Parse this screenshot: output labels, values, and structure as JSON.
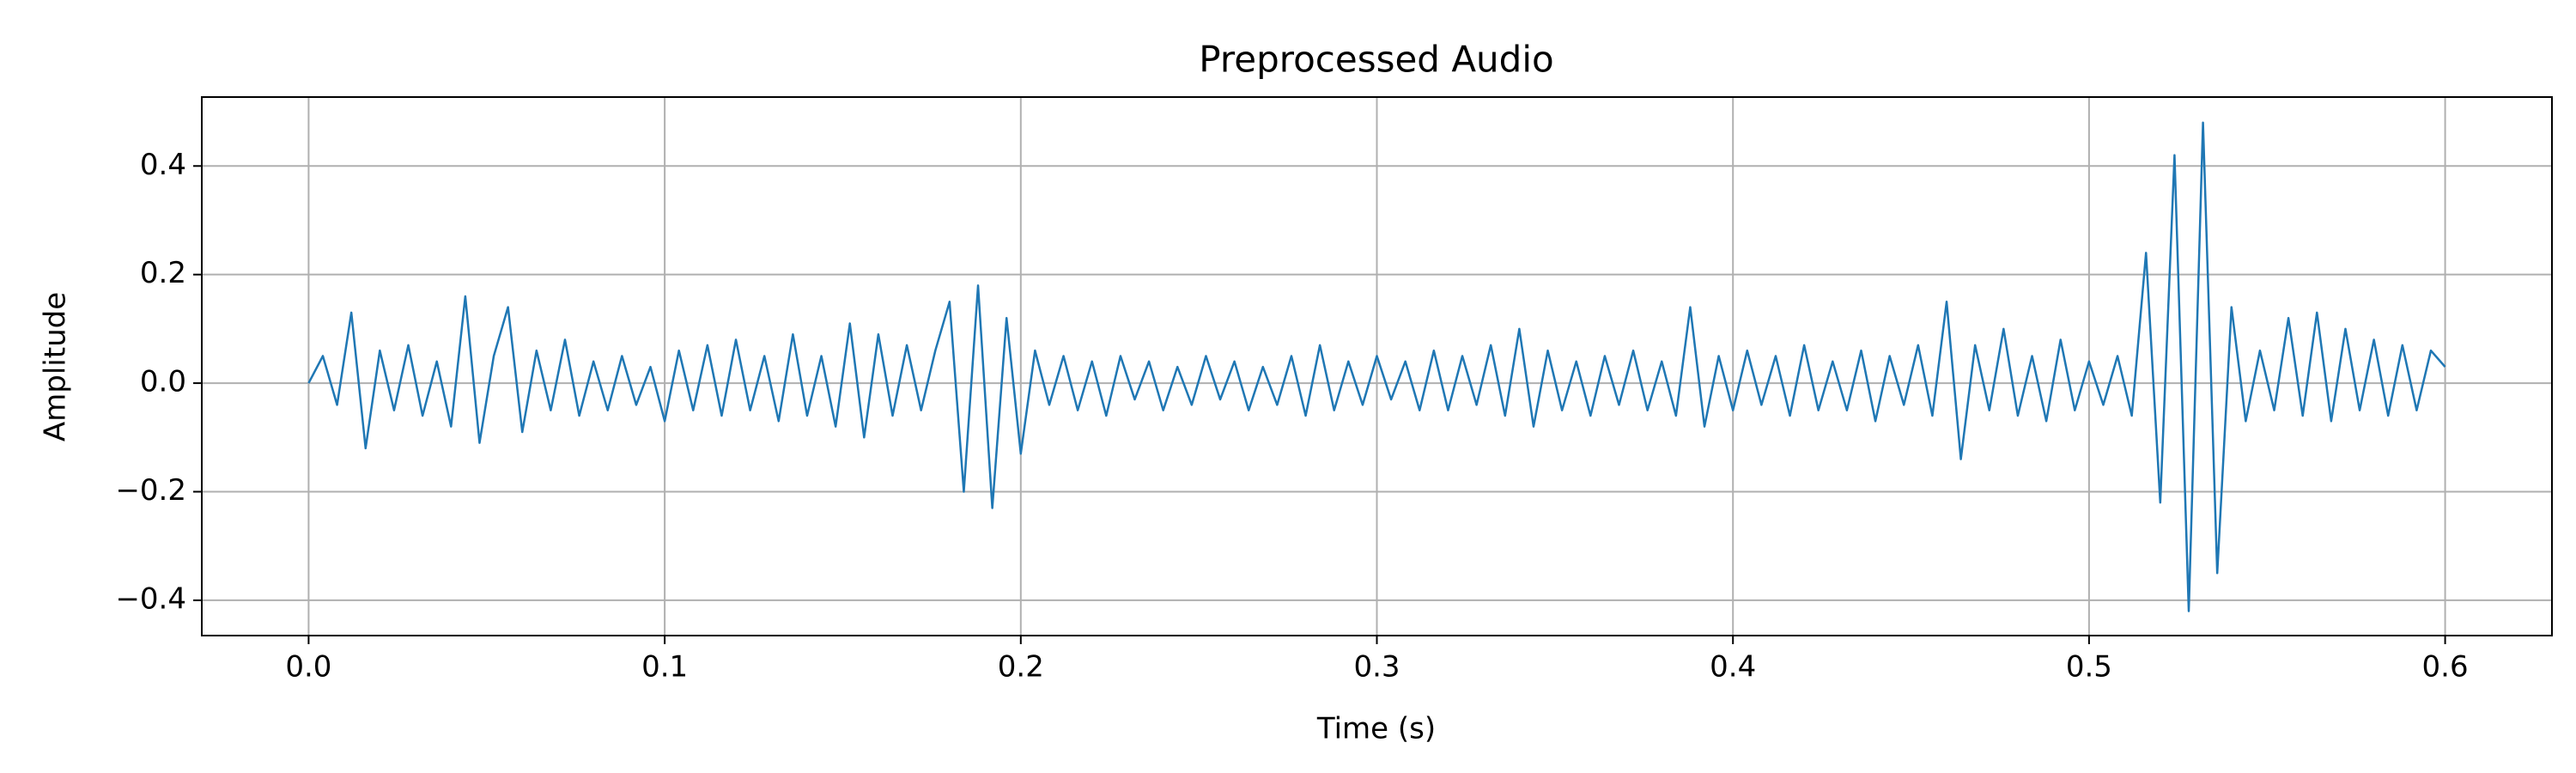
{
  "chart_data": {
    "type": "line",
    "title": "Preprocessed Audio",
    "x_label": "Time (s)",
    "y_label": "Amplitude",
    "color": "#1f77b4",
    "grid": true,
    "xlim": [
      -0.03,
      0.63
    ],
    "ylim": [
      -0.465,
      0.527
    ],
    "xticks": [
      {
        "value": 0,
        "label": "0.0"
      },
      0.1,
      0.2,
      0.3,
      0.4,
      0.5,
      0.6
    ],
    "yticks": [
      {
        "value": -0.4,
        "label": "−0.4"
      },
      {
        "value": -0.2,
        "label": "−0.2"
      },
      {
        "value": 0,
        "label": "0.0"
      },
      0.2,
      0.4
    ],
    "x": [
      0,
      0.004,
      0.008,
      0.012,
      0.016,
      0.02,
      0.024,
      0.028,
      0.032,
      0.036,
      0.04,
      0.044,
      0.048,
      0.052,
      0.056,
      0.06,
      0.064,
      0.068,
      0.072,
      0.076,
      0.08,
      0.084,
      0.088,
      0.092,
      0.096,
      0.1,
      0.104,
      0.108,
      0.112,
      0.116,
      0.12,
      0.124,
      0.128,
      0.132,
      0.136,
      0.14,
      0.144,
      0.148,
      0.152,
      0.156,
      0.16,
      0.164,
      0.168,
      0.172,
      0.176,
      0.18,
      0.184,
      0.188,
      0.192,
      0.196,
      0.2,
      0.204,
      0.208,
      0.212,
      0.216,
      0.22,
      0.224,
      0.228,
      0.232,
      0.236,
      0.24,
      0.244,
      0.248,
      0.252,
      0.256,
      0.26,
      0.264,
      0.268,
      0.272,
      0.276,
      0.28,
      0.284,
      0.288,
      0.292,
      0.296,
      0.3,
      0.304,
      0.308,
      0.312,
      0.316,
      0.32,
      0.324,
      0.328,
      0.332,
      0.336,
      0.34,
      0.344,
      0.348,
      0.352,
      0.356,
      0.36,
      0.364,
      0.368,
      0.372,
      0.376,
      0.38,
      0.384,
      0.388,
      0.392,
      0.396,
      0.4,
      0.404,
      0.408,
      0.412,
      0.416,
      0.42,
      0.424,
      0.428,
      0.432,
      0.436,
      0.44,
      0.444,
      0.448,
      0.452,
      0.456,
      0.46,
      0.464,
      0.468,
      0.472,
      0.476,
      0.48,
      0.484,
      0.488,
      0.492,
      0.496,
      0.5,
      0.504,
      0.508,
      0.512,
      0.516,
      0.52,
      0.524,
      0.528,
      0.532,
      0.536,
      0.54,
      0.544,
      0.548,
      0.552,
      0.556,
      0.56,
      0.564,
      0.568,
      0.572,
      0.576,
      0.58,
      0.584,
      0.588,
      0.592,
      0.596,
      0.6
    ],
    "values": [
      0,
      0.05,
      -0.04,
      0.13,
      -0.12,
      0.06,
      -0.05,
      0.07,
      -0.06,
      0.04,
      -0.08,
      0.16,
      -0.11,
      0.05,
      0.14,
      -0.09,
      0.06,
      -0.05,
      0.08,
      -0.06,
      0.04,
      -0.05,
      0.05,
      -0.04,
      0.03,
      -0.07,
      0.06,
      -0.05,
      0.07,
      -0.06,
      0.08,
      -0.05,
      0.05,
      -0.07,
      0.09,
      -0.06,
      0.05,
      -0.08,
      0.11,
      -0.1,
      0.09,
      -0.06,
      0.07,
      -0.05,
      0.06,
      0.15,
      -0.2,
      0.18,
      -0.23,
      0.12,
      -0.13,
      0.06,
      -0.04,
      0.05,
      -0.05,
      0.04,
      -0.06,
      0.05,
      -0.03,
      0.04,
      -0.05,
      0.03,
      -0.04,
      0.05,
      -0.03,
      0.04,
      -0.05,
      0.03,
      -0.04,
      0.05,
      -0.06,
      0.07,
      -0.05,
      0.04,
      -0.04,
      0.05,
      -0.03,
      0.04,
      -0.05,
      0.06,
      -0.05,
      0.05,
      -0.04,
      0.07,
      -0.06,
      0.1,
      -0.08,
      0.06,
      -0.05,
      0.04,
      -0.06,
      0.05,
      -0.04,
      0.06,
      -0.05,
      0.04,
      -0.06,
      0.14,
      -0.08,
      0.05,
      -0.05,
      0.06,
      -0.04,
      0.05,
      -0.06,
      0.07,
      -0.05,
      0.04,
      -0.05,
      0.06,
      -0.07,
      0.05,
      -0.04,
      0.07,
      -0.06,
      0.15,
      -0.14,
      0.07,
      -0.05,
      0.1,
      -0.06,
      0.05,
      -0.07,
      0.08,
      -0.05,
      0.04,
      -0.04,
      0.05,
      -0.06,
      0.24,
      -0.22,
      0.42,
      -0.42,
      0.48,
      -0.35,
      0.14,
      -0.07,
      0.06,
      -0.05,
      0.12,
      -0.06,
      0.13,
      -0.07,
      0.1,
      -0.05,
      0.08,
      -0.06,
      0.07,
      -0.05,
      0.06,
      0.03
    ]
  }
}
